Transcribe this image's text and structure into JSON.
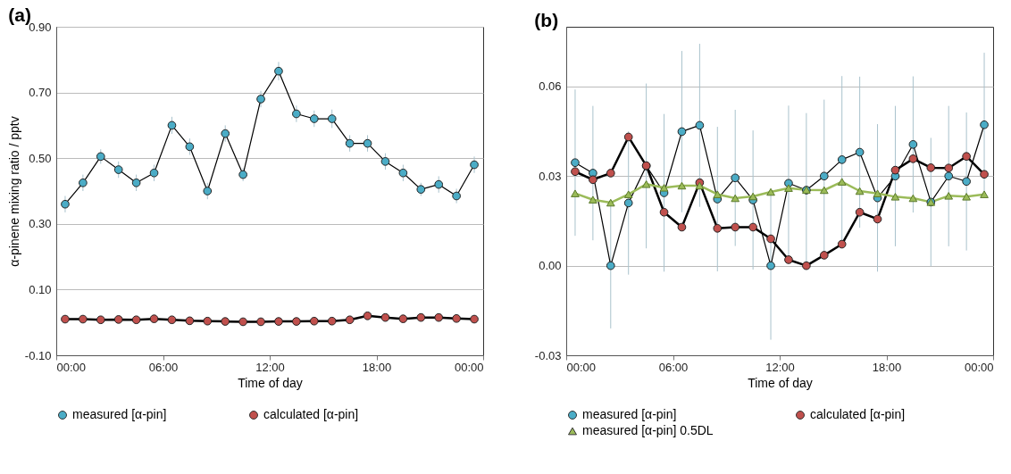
{
  "chart_data": [
    {
      "type": "line",
      "title": "(a)",
      "xlabel": "Time of day",
      "ylabel": "α-pinene mixing ratio / pptv",
      "xlim": [
        0,
        24
      ],
      "xticks": [
        {
          "value": 0,
          "label": "00:00"
        },
        {
          "value": 6,
          "label": "06:00"
        },
        {
          "value": 12,
          "label": "12:00"
        },
        {
          "value": 18,
          "label": "18:00"
        },
        {
          "value": 24,
          "label": "00:00"
        }
      ],
      "ylim": [
        -0.1,
        0.9
      ],
      "yticks": [
        {
          "value": -0.1,
          "label": "-0.10"
        },
        {
          "value": 0.1,
          "label": "0.10"
        },
        {
          "value": 0.3,
          "label": "0.30"
        },
        {
          "value": 0.5,
          "label": "0.50"
        },
        {
          "value": 0.7,
          "label": "0.70"
        },
        {
          "value": 0.9,
          "label": "0.90"
        }
      ],
      "grid": "y",
      "legend": "bottom",
      "x": [
        0.5,
        1.5,
        2.5,
        3.5,
        4.5,
        5.5,
        6.5,
        7.5,
        8.5,
        9.5,
        10.5,
        11.5,
        12.5,
        13.5,
        14.5,
        15.5,
        16.5,
        17.5,
        18.5,
        19.5,
        20.5,
        21.5,
        22.5,
        23.5
      ],
      "series": [
        {
          "name": "measured [α-pin]",
          "color": "#4bacc6",
          "marker": "circle",
          "values": [
            0.36,
            0.425,
            0.505,
            0.465,
            0.425,
            0.455,
            0.6,
            0.535,
            0.4,
            0.575,
            0.45,
            0.68,
            0.765,
            0.635,
            0.62,
            0.62,
            0.545,
            0.545,
            0.49,
            0.455,
            0.405,
            0.42,
            0.385,
            0.48
          ],
          "errors": [
            0.025,
            0.025,
            0.022,
            0.025,
            0.025,
            0.025,
            0.026,
            0.025,
            0.025,
            0.025,
            0.02,
            0.025,
            0.028,
            0.025,
            0.025,
            0.028,
            0.025,
            0.025,
            0.025,
            0.025,
            0.02,
            0.025,
            0.022,
            0.025
          ]
        },
        {
          "name": "calculated [α-pin]",
          "color": "#c0504d",
          "marker": "circle",
          "values": [
            0.01,
            0.01,
            0.008,
            0.009,
            0.008,
            0.011,
            0.008,
            0.005,
            0.004,
            0.003,
            0.002,
            0.002,
            0.003,
            0.003,
            0.004,
            0.004,
            0.008,
            0.02,
            0.015,
            0.011,
            0.015,
            0.015,
            0.012,
            0.01
          ],
          "errors": [
            null,
            null,
            null,
            null,
            null,
            null,
            null,
            null,
            null,
            null,
            null,
            null,
            null,
            null,
            null,
            null,
            null,
            null,
            null,
            0.012,
            null,
            null,
            null,
            null
          ]
        }
      ]
    },
    {
      "type": "line",
      "title": "(b)",
      "xlabel": "Time of day",
      "xlim": [
        0,
        24
      ],
      "xticks": [
        {
          "value": 0,
          "label": "00:00"
        },
        {
          "value": 6,
          "label": "06:00"
        },
        {
          "value": 12,
          "label": "12:00"
        },
        {
          "value": 18,
          "label": "18:00"
        },
        {
          "value": 24,
          "label": "00:00"
        }
      ],
      "ylim": [
        -0.03,
        0.08
      ],
      "yticks": [
        {
          "value": -0.03,
          "label": "-0.03"
        },
        {
          "value": 0,
          "label": "0.00"
        },
        {
          "value": 0.03,
          "label": "0.03"
        },
        {
          "value": 0.06,
          "label": "0.06"
        }
      ],
      "grid": "y",
      "legend": "bottom",
      "x": [
        0.5,
        1.5,
        2.5,
        3.5,
        4.5,
        5.5,
        6.5,
        7.5,
        8.5,
        9.5,
        10.5,
        11.5,
        12.5,
        13.5,
        14.5,
        15.5,
        16.5,
        17.5,
        18.5,
        19.5,
        20.5,
        21.5,
        22.5,
        23.5
      ],
      "series": [
        {
          "name": "measured [α-pin]",
          "color": "#4bacc6",
          "marker": "circle",
          "values": [
            0.0345,
            0.031,
            0,
            0.021,
            0.0334,
            0.0244,
            0.0449,
            0.047,
            0.0223,
            0.0294,
            0.022,
            0,
            0.0276,
            0.0253,
            0.03,
            0.0355,
            0.038,
            0.0227,
            0.03,
            0.0406,
            0.0213,
            0.03,
            0.0282,
            0.0472
          ],
          "errors": [
            0.0245,
            0.0225,
            0.021,
            0.024,
            0.0276,
            0.0264,
            0.027,
            0.0273,
            0.0242,
            0.0228,
            0.0233,
            0.0248,
            0.026,
            0.0258,
            0.0256,
            0.028,
            0.0253,
            0.0247,
            0.0235,
            0.0228,
            0.0215,
            0.0235,
            0.0231,
            0.0241
          ]
        },
        {
          "name": "calculated [α-pin]",
          "color": "#c0504d",
          "marker": "circle",
          "values": [
            0.0315,
            0.0288,
            0.031,
            0.0431,
            0.0335,
            0.0179,
            0.0129,
            0.0278,
            0.0125,
            0.0129,
            0.0129,
            0.009,
            0.002,
            0,
            0.0035,
            0.0072,
            0.0179,
            0.0156,
            0.032,
            0.0358,
            0.0328,
            0.0327,
            0.0366,
            0.0306
          ]
        },
        {
          "name": "measured [α-pin] 0.5DL",
          "color": "#9bbb59",
          "marker": "triangle",
          "values": [
            0.0242,
            0.0221,
            0.0211,
            0.0239,
            0.0273,
            0.0261,
            0.0268,
            0.0268,
            0.0239,
            0.0226,
            0.0232,
            0.0247,
            0.026,
            0.0254,
            0.0253,
            0.0281,
            0.025,
            0.0242,
            0.0231,
            0.0226,
            0.0213,
            0.0234,
            0.0231,
            0.0239
          ]
        }
      ]
    }
  ]
}
